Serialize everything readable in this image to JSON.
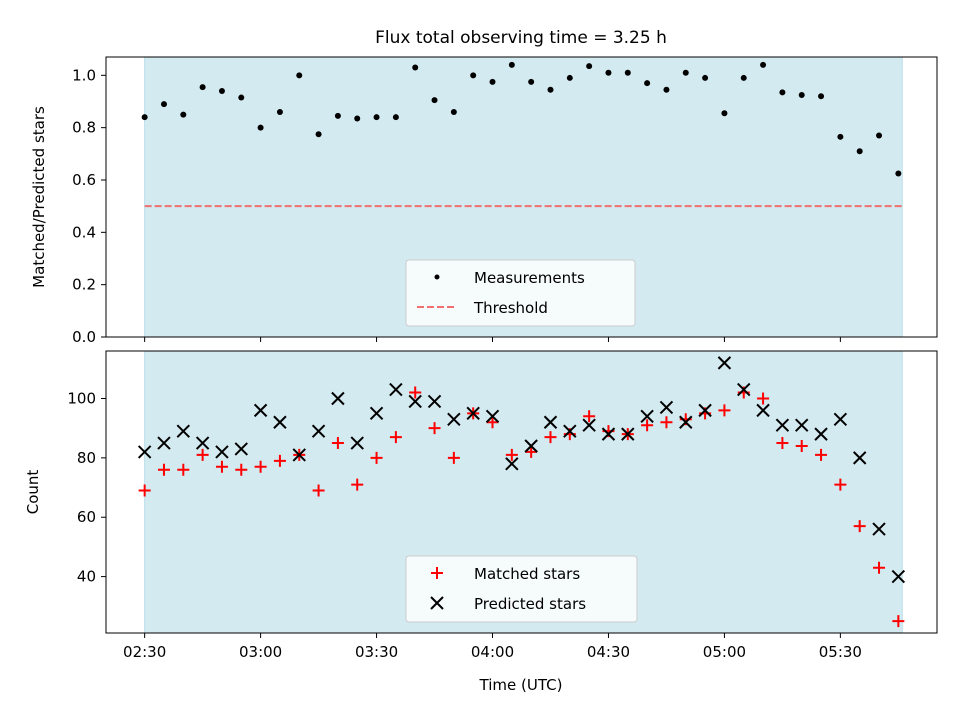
{
  "chart_data": [
    {
      "type": "scatter",
      "title": "Flux total observing time = 3.25 h",
      "xlabel": "",
      "ylabel": "Matched/Predicted stars",
      "ylim": [
        0,
        1.07
      ],
      "yticks": [
        0.0,
        0.2,
        0.4,
        0.6,
        0.8,
        1.0
      ],
      "ytick_labels": [
        "0.0",
        "0.2",
        "0.4",
        "0.6",
        "0.8",
        "1.0"
      ],
      "x_time_minutes": [
        150,
        155,
        160,
        165,
        170,
        175,
        180,
        185,
        190,
        195,
        200,
        205,
        210,
        215,
        220,
        225,
        230,
        235,
        240,
        245,
        250,
        255,
        260,
        265,
        270,
        275,
        280,
        285,
        290,
        295,
        300,
        305,
        310,
        315,
        320,
        325,
        330,
        335,
        340,
        345
      ],
      "series": [
        {
          "name": "Measurements",
          "marker": "dot",
          "color": "#000000",
          "values": [
            0.84,
            0.89,
            0.85,
            0.955,
            0.94,
            0.915,
            0.8,
            0.86,
            1.0,
            0.775,
            0.845,
            0.835,
            0.84,
            0.84,
            1.03,
            0.905,
            0.86,
            1.0,
            0.975,
            1.04,
            0.975,
            0.945,
            0.99,
            1.035,
            1.01,
            1.01,
            0.97,
            0.945,
            1.01,
            0.99,
            0.855,
            0.99,
            1.04,
            0.935,
            0.925,
            0.92,
            0.765,
            0.71,
            0.77,
            0.625
          ]
        }
      ],
      "threshold": {
        "name": "Threshold",
        "value": 0.5,
        "color": "#f07070",
        "style": "dashed"
      },
      "shaded_span_minutes": [
        150,
        346
      ],
      "shade_color": "#d3eaf0",
      "legend": {
        "placement": "lower center",
        "entries": [
          "Measurements",
          "Threshold"
        ]
      }
    },
    {
      "type": "scatter",
      "xlabel": "Time (UTC)",
      "ylabel": "Count",
      "ylim": [
        21,
        116
      ],
      "yticks": [
        40,
        60,
        80,
        100
      ],
      "ytick_labels": [
        "40",
        "60",
        "80",
        "100"
      ],
      "xlim_minutes": [
        140,
        355
      ],
      "xticks_minutes": [
        150,
        180,
        210,
        240,
        270,
        300,
        330
      ],
      "xtick_labels": [
        "02:30",
        "03:00",
        "03:30",
        "04:00",
        "04:30",
        "05:00",
        "05:30"
      ],
      "x_time_minutes": [
        150,
        155,
        160,
        165,
        170,
        175,
        180,
        185,
        190,
        195,
        200,
        205,
        210,
        215,
        220,
        225,
        230,
        235,
        240,
        245,
        250,
        255,
        260,
        265,
        270,
        275,
        280,
        285,
        290,
        295,
        300,
        305,
        310,
        315,
        320,
        325,
        330,
        335,
        340,
        345
      ],
      "series": [
        {
          "name": "Matched stars",
          "marker": "plus",
          "color": "#ff0000",
          "values": [
            69,
            76,
            76,
            81,
            77,
            76,
            77,
            79,
            81,
            69,
            85,
            71,
            80,
            87,
            102,
            90,
            80,
            95,
            92,
            81,
            82,
            87,
            88,
            94,
            89,
            88,
            91,
            92,
            93,
            95,
            96,
            102,
            100,
            85,
            84,
            81,
            71,
            57,
            43,
            25
          ]
        },
        {
          "name": "Predicted stars",
          "marker": "x",
          "color": "#000000",
          "values": [
            82,
            85,
            89,
            85,
            82,
            83,
            96,
            92,
            81,
            89,
            100,
            85,
            95,
            103,
            99,
            99,
            93,
            95,
            94,
            78,
            84,
            92,
            89,
            91,
            88,
            88,
            94,
            97,
            92,
            96,
            112,
            103,
            96,
            91,
            91,
            88,
            93,
            80,
            56,
            40
          ]
        }
      ],
      "shaded_span_minutes": [
        150,
        346
      ],
      "shade_color": "#d3eaf0",
      "legend": {
        "placement": "lower center",
        "entries": [
          "Matched stars",
          "Predicted stars"
        ]
      }
    }
  ]
}
